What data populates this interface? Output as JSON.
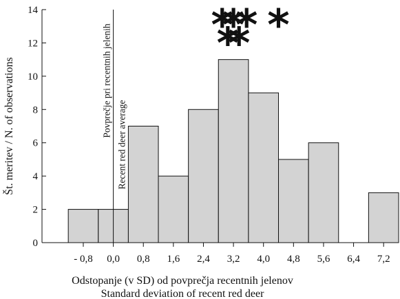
{
  "chart_data": {
    "type": "bar",
    "subtype": "histogram",
    "bin_width": 0.8,
    "bins": [
      {
        "start": -1.2,
        "end": -0.4,
        "value": 2
      },
      {
        "start": -0.4,
        "end": 0.4,
        "value": 2
      },
      {
        "start": 0.4,
        "end": 1.2,
        "value": 7
      },
      {
        "start": 1.2,
        "end": 2.0,
        "value": 4
      },
      {
        "start": 2.0,
        "end": 2.8,
        "value": 8
      },
      {
        "start": 2.8,
        "end": 3.6,
        "value": 11
      },
      {
        "start": 3.6,
        "end": 4.4,
        "value": 9
      },
      {
        "start": 4.4,
        "end": 5.2,
        "value": 5
      },
      {
        "start": 5.2,
        "end": 6.0,
        "value": 6
      },
      {
        "start": 6.0,
        "end": 6.8,
        "value": 0
      },
      {
        "start": 6.8,
        "end": 7.6,
        "value": 3
      }
    ],
    "xlim": [
      -1.9,
      7.6
    ],
    "ylim": [
      0,
      14
    ],
    "x_ticks": [
      -0.8,
      0.0,
      0.8,
      1.6,
      2.4,
      3.2,
      4.0,
      4.8,
      5.6,
      6.4,
      7.2
    ],
    "x_tick_labels": [
      "- 0,8",
      "0,0",
      "0,8",
      "1,6",
      "2,4",
      "3,2",
      "4,0",
      "4,8",
      "5,6",
      "6,4",
      "7,2"
    ],
    "y_ticks": [
      0,
      2,
      4,
      6,
      8,
      10,
      12,
      14
    ],
    "y_tick_labels": [
      "0",
      "2",
      "4",
      "6",
      "8",
      "10",
      "12",
      "14"
    ],
    "xlabel": "Odstopanje (v SD) od povprečja recentnih jelenov",
    "xlabel_line2": "Standard  deviation of recent red deer",
    "ylabel": "Št. meritev / N. of observations",
    "reference_line": {
      "x": 0.0,
      "label_line1": "Povprečje pri recentnih jelenih",
      "label_line2": "Recent red deer average"
    },
    "markers": [
      {
        "symbol": "*",
        "x": 2.9,
        "y": 13.3
      },
      {
        "symbol": "*",
        "x": 3.2,
        "y": 13.3
      },
      {
        "symbol": "*",
        "x": 3.55,
        "y": 13.3
      },
      {
        "symbol": "*",
        "x": 3.05,
        "y": 12.2
      },
      {
        "symbol": "*",
        "x": 3.35,
        "y": 12.2
      },
      {
        "symbol": "*",
        "x": 4.4,
        "y": 13.3
      }
    ],
    "bar_fill": "#d3d3d3",
    "bar_stroke": "#111111",
    "grid": false
  }
}
